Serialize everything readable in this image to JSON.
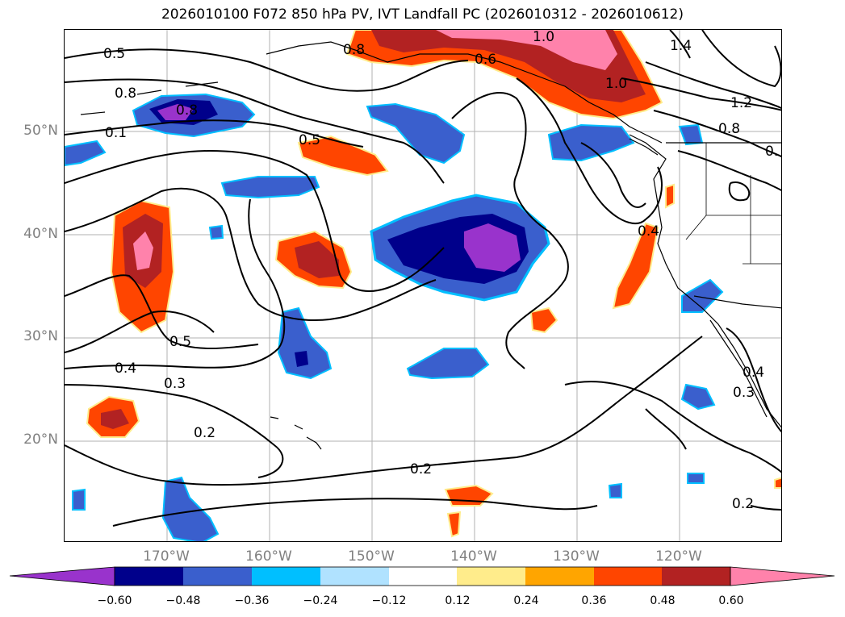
{
  "title": "2026010100 F072 850 hPa PV, IVT Landfall PC (2026010312 - 2026010612)",
  "map": {
    "lat_labels": [
      "50°N",
      "40°N",
      "30°N",
      "20°N"
    ],
    "lon_labels": [
      "170°W",
      "160°W",
      "150°W",
      "140°W",
      "130°W",
      "120°W"
    ],
    "contour_labels": [
      "0.5",
      "0.8",
      "0.1",
      "0.8",
      "0.5",
      "0.8",
      "0.6",
      "1.0",
      "1.0",
      "1.2",
      "0.8",
      "0.",
      "0.4",
      "0.5",
      "0.4",
      "0.3",
      "0.2",
      "0.2",
      "0.4",
      "0.3",
      "0.2",
      "1.4"
    ],
    "colors": {
      "neg_060_plus": "#9933cc",
      "neg_048": "#00008b",
      "neg_036": "#3a5fcd",
      "neg_024": "#00bfff",
      "neg_012": "#b0e2ff",
      "neutral": "#ffffff",
      "pos_012": "#ffec8b",
      "pos_024": "#ffa500",
      "pos_036": "#ff4500",
      "pos_048": "#b22222",
      "pos_060": "#ff82ab"
    }
  },
  "colorbar": {
    "ticks": [
      "−0.60",
      "−0.48",
      "−0.36",
      "−0.24",
      "−0.12",
      "0.12",
      "0.24",
      "0.36",
      "0.48",
      "0.60"
    ],
    "segment_colors": [
      "#9933cc",
      "#00008b",
      "#3a5fcd",
      "#00bfff",
      "#b0e2ff",
      "#ffffff",
      "#ffec8b",
      "#ffa500",
      "#ff4500",
      "#b22222",
      "#ff82ab"
    ]
  }
}
